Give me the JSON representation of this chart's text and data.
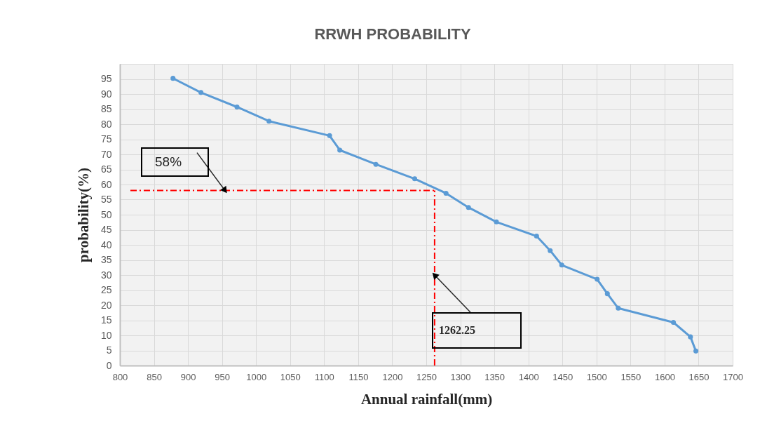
{
  "chart_data": {
    "type": "line",
    "title": "RRWH PROBABILITY",
    "xlabel": "Annual rainfall(mm)",
    "ylabel": "probability(%)",
    "x": [
      878,
      919,
      972,
      1019,
      1108,
      1123,
      1176,
      1233,
      1279,
      1312,
      1353,
      1412,
      1432,
      1449,
      1501,
      1516,
      1532,
      1613,
      1638,
      1646
    ],
    "series": [
      {
        "color": "#5b9bd5",
        "values": [
          95.2,
          90.5,
          85.7,
          81.0,
          76.2,
          71.4,
          66.7,
          61.9,
          57.1,
          52.4,
          47.6,
          42.9,
          38.1,
          33.3,
          28.6,
          23.8,
          19.0,
          14.3,
          9.5,
          4.8
        ]
      }
    ],
    "xlim": [
      800,
      1700
    ],
    "xticks": [
      800,
      850,
      900,
      950,
      1000,
      1050,
      1100,
      1150,
      1200,
      1250,
      1300,
      1350,
      1400,
      1450,
      1500,
      1550,
      1600,
      1650,
      1700
    ],
    "ylim": [
      0,
      100
    ],
    "yticks": [
      0,
      5,
      10,
      15,
      20,
      25,
      30,
      35,
      40,
      45,
      50,
      55,
      60,
      65,
      70,
      75,
      80,
      85,
      90,
      95
    ],
    "ref_lines": [
      {
        "axis": "y",
        "value": 58,
        "label": "58%",
        "color": "#ff0000",
        "line_style": "dashdot"
      },
      {
        "axis": "x",
        "value": 1262.25,
        "label": "1262.25",
        "color": "#ff0000",
        "line_style": "dashdot"
      }
    ],
    "grid": true,
    "marker": "circle",
    "line_style": "solid"
  }
}
